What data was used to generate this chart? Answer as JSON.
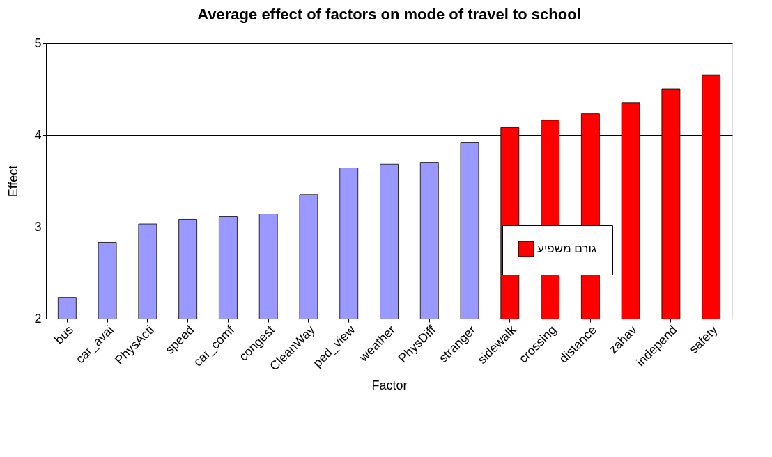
{
  "chart_data": {
    "type": "bar",
    "title": "Average effect of factors on mode of travel to school",
    "xlabel": "Factor",
    "ylabel": "Effect",
    "categories": [
      "bus",
      "car_avai",
      "PhysActi",
      "speed",
      "car_comf",
      "congest",
      "CleanWay",
      "ped_view",
      "weather",
      "PhysDiff",
      "stranger",
      "sidewalk",
      "crossing",
      "distance",
      "zahav",
      "independ",
      "safety"
    ],
    "series": [
      {
        "color": "#9999ff",
        "values": [
          2.23,
          2.83,
          3.03,
          3.08,
          3.11,
          3.14,
          3.35,
          3.64,
          3.68,
          3.7,
          3.92,
          null,
          null,
          null,
          null,
          null,
          null
        ]
      },
      {
        "name": "גורם משפיע",
        "color": "#ff0000",
        "values": [
          null,
          null,
          null,
          null,
          null,
          null,
          null,
          null,
          null,
          null,
          null,
          4.08,
          4.16,
          4.23,
          4.35,
          4.5,
          4.65
        ]
      }
    ],
    "ylim": [
      2,
      5
    ],
    "yticks": [
      2,
      3,
      4,
      5
    ],
    "grid": "y",
    "legend": "right"
  }
}
